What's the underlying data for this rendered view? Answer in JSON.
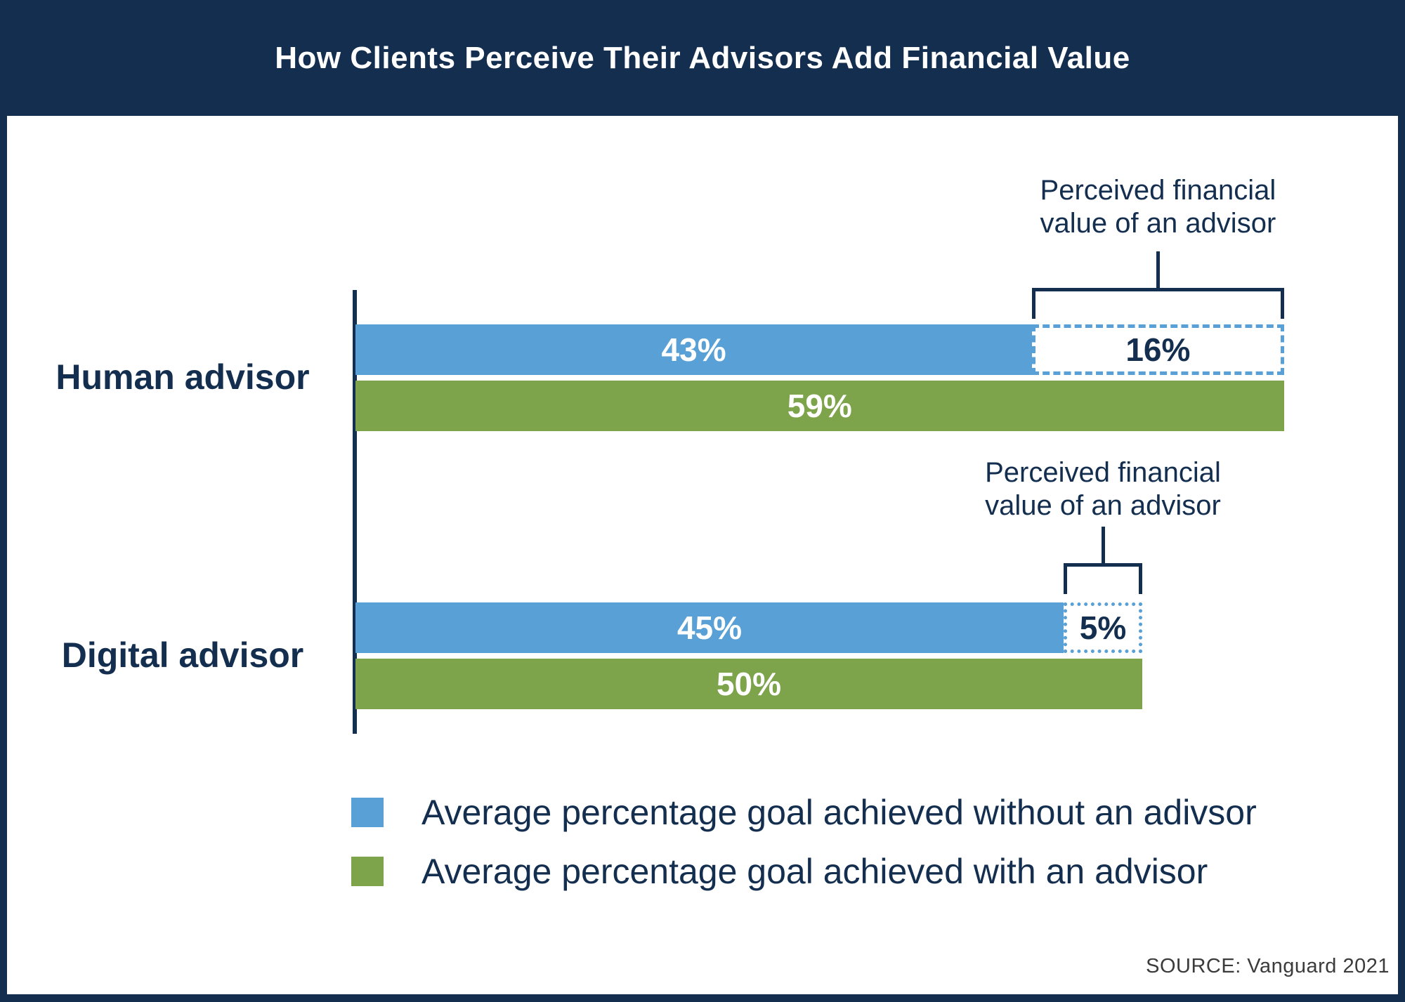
{
  "header": {
    "title": "How Clients Perceive Their Advisors Add Financial Value"
  },
  "source": {
    "text": "SOURCE: Vanguard 2021"
  },
  "colors": {
    "navy": "#132E4E",
    "blue": "#58A0D6",
    "green": "#7DA34B",
    "source_text": "#3B3B3B",
    "background": "#FFFFFF"
  },
  "chart_data": {
    "type": "bar",
    "orientation": "horizontal",
    "categories": [
      "Human advisor",
      "Digital advisor"
    ],
    "series": [
      {
        "name": "Average percentage goal achieved without an adivsor",
        "values": [
          43,
          45
        ],
        "color": "#58A0D6"
      },
      {
        "name": "Perceived financial value of an advisor",
        "values": [
          16,
          5
        ],
        "style": "dashed-outline",
        "color": "#58A0D6"
      },
      {
        "name": "Average percentage goal achieved with an advisor",
        "values": [
          59,
          50
        ],
        "color": "#7DA34B"
      }
    ],
    "title": "How Clients Perceive Their Advisors Add Financial Value",
    "xlabel": "",
    "ylabel": "",
    "xlim": [
      0,
      62
    ],
    "grid": false,
    "legend_position": "bottom",
    "annotations": [
      "Perceived financial value of an advisor",
      "Perceived financial value of an advisor"
    ]
  },
  "rows": [
    {
      "label": "Human advisor",
      "without_label": "43%",
      "perceived_label": "16%",
      "with_label": "59%",
      "annotation_line1": "Perceived financial",
      "annotation_line2": "value of an advisor"
    },
    {
      "label": "Digital advisor",
      "without_label": "45%",
      "perceived_label": "5%",
      "with_label": "50%",
      "annotation_line1": "Perceived financial",
      "annotation_line2": "value of an advisor"
    }
  ],
  "legend": {
    "items": [
      {
        "label": "Average percentage goal achieved without an adivsor"
      },
      {
        "label": "Average percentage goal achieved with an advisor"
      }
    ]
  }
}
